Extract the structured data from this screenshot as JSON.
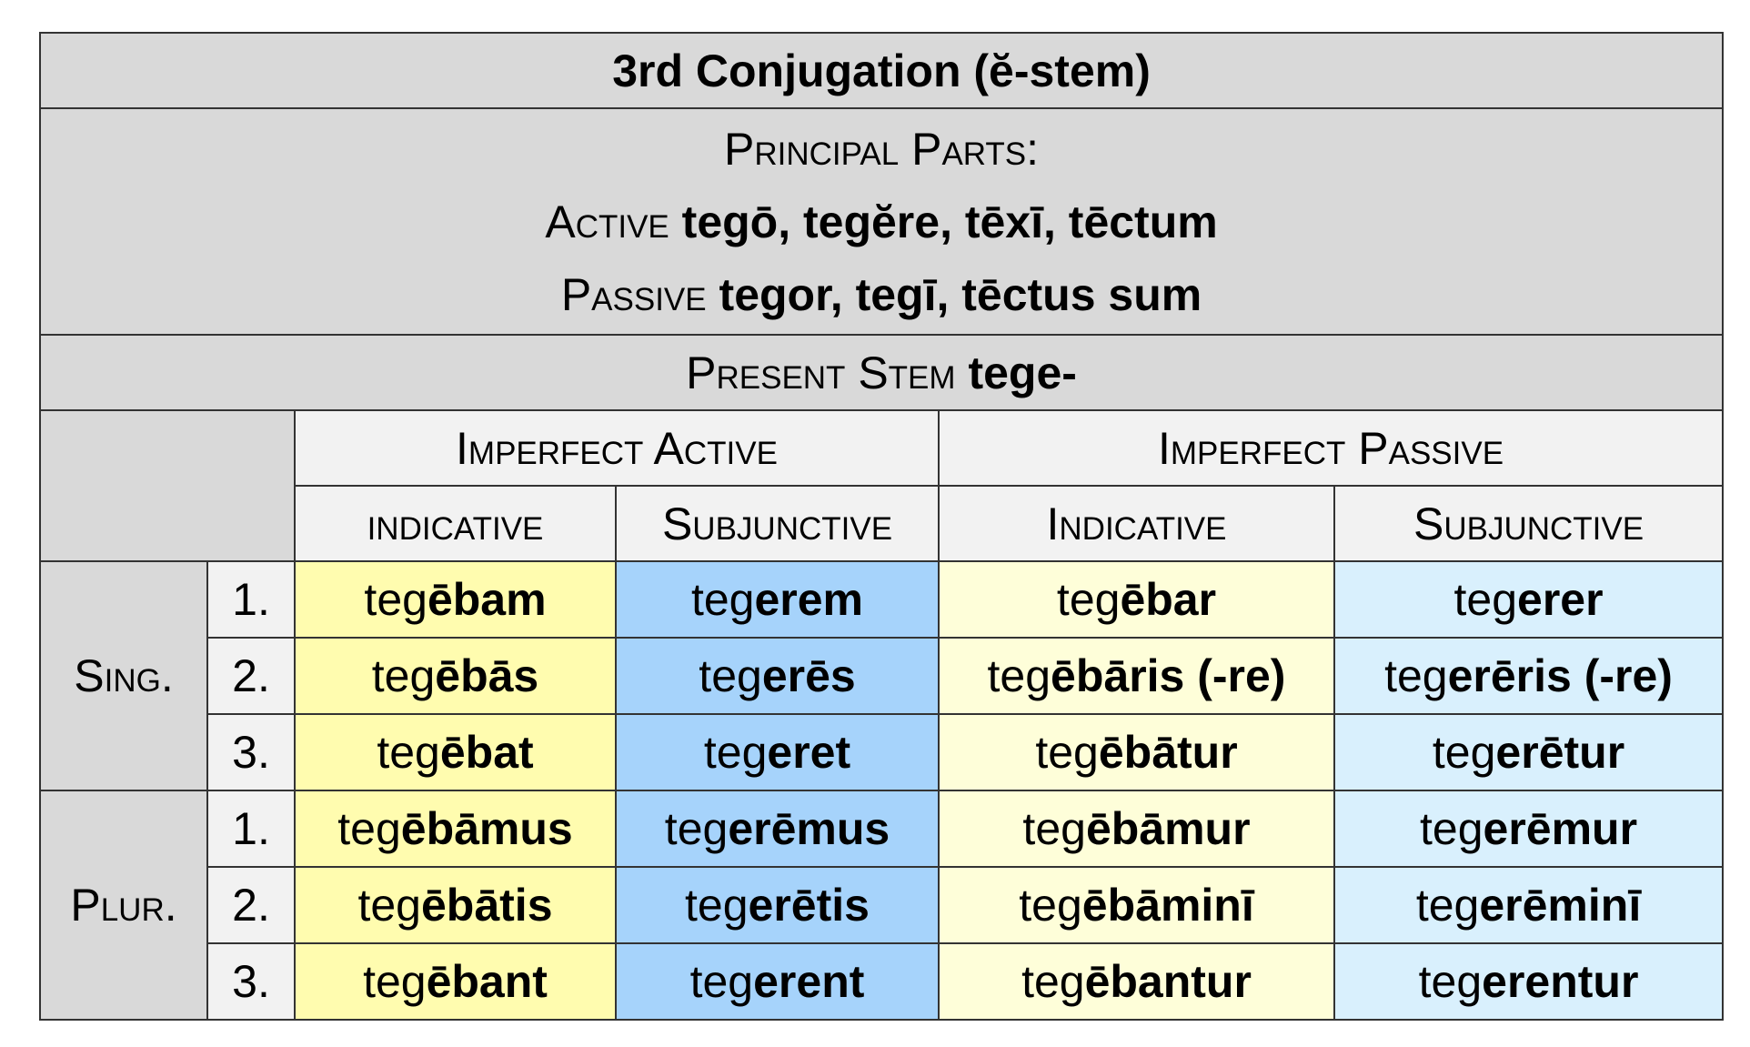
{
  "header": {
    "title": "3rd Conjugation (ĕ-stem)",
    "principal_parts_label": "Principal Parts:",
    "active_label": "Active",
    "active_parts": "tegō, tegĕre, tēxī, tēctum",
    "passive_label": "Passive",
    "passive_parts": "tegor, tegī, tēctus sum",
    "present_stem_label": "Present Stem",
    "present_stem": "tege-"
  },
  "columns": {
    "groups": [
      "Imperfect Active",
      "Imperfect Passive"
    ],
    "moods": [
      "indicative",
      "Subjunctive",
      "Indicative",
      "Subjunctive"
    ]
  },
  "groups": [
    {
      "label": "Sing.",
      "rows": [
        {
          "person": "1.",
          "forms": [
            {
              "stem": "teg",
              "ending": "ēbam"
            },
            {
              "stem": "teg",
              "ending": "erem"
            },
            {
              "stem": "teg",
              "ending": "ēbar"
            },
            {
              "stem": "teg",
              "ending": "erer"
            }
          ]
        },
        {
          "person": "2.",
          "forms": [
            {
              "stem": "teg",
              "ending": "ēbās"
            },
            {
              "stem": "teg",
              "ending": "erēs"
            },
            {
              "stem": "teg",
              "ending": "ēbāris (-re)"
            },
            {
              "stem": "teg",
              "ending": "erēris (-re)"
            }
          ]
        },
        {
          "person": "3.",
          "forms": [
            {
              "stem": "teg",
              "ending": "ēbat"
            },
            {
              "stem": "teg",
              "ending": "eret"
            },
            {
              "stem": "teg",
              "ending": "ēbātur"
            },
            {
              "stem": "teg",
              "ending": "erētur"
            }
          ]
        }
      ]
    },
    {
      "label": "Plur.",
      "rows": [
        {
          "person": "1.",
          "forms": [
            {
              "stem": "teg",
              "ending": "ēbāmus"
            },
            {
              "stem": "teg",
              "ending": "erēmus"
            },
            {
              "stem": "teg",
              "ending": "ēbāmur"
            },
            {
              "stem": "teg",
              "ending": "erēmur"
            }
          ]
        },
        {
          "person": "2.",
          "forms": [
            {
              "stem": "teg",
              "ending": "ēbātis"
            },
            {
              "stem": "teg",
              "ending": "erētis"
            },
            {
              "stem": "teg",
              "ending": "ēbāminī"
            },
            {
              "stem": "teg",
              "ending": "erēminī"
            }
          ]
        },
        {
          "person": "3.",
          "forms": [
            {
              "stem": "teg",
              "ending": "ēbant"
            },
            {
              "stem": "teg",
              "ending": "erent"
            },
            {
              "stem": "teg",
              "ending": "ēbantur"
            },
            {
              "stem": "teg",
              "ending": "erentur"
            }
          ]
        }
      ]
    }
  ]
}
